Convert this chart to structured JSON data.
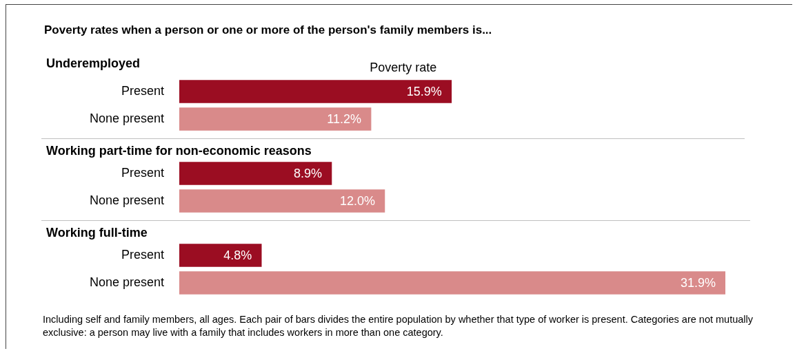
{
  "chart_data": [
    {
      "type": "bar",
      "orientation": "horizontal",
      "title": "Poverty rates when a person or one or more of the person's family members is...",
      "subtitle": "Underemployed",
      "xlabel": "Poverty rate",
      "categories": [
        "Present",
        "None present"
      ],
      "values": [
        15.9,
        11.2
      ],
      "value_labels": [
        "15.9%",
        "11.2%"
      ],
      "colors": [
        "#9b0d22",
        "#d98a8a"
      ],
      "tick_labels": "y"
    },
    {
      "type": "bar",
      "orientation": "horizontal",
      "subtitle": "Working part-time for non-economic reasons",
      "categories": [
        "Present",
        "None present"
      ],
      "values": [
        8.9,
        12.0
      ],
      "value_labels": [
        "8.9%",
        "12.0%"
      ],
      "colors": [
        "#9b0d22",
        "#d98a8a"
      ],
      "tick_labels": "y"
    },
    {
      "type": "bar",
      "orientation": "horizontal",
      "subtitle": "Working full-time",
      "categories": [
        "Present",
        "None present"
      ],
      "values": [
        4.8,
        31.9
      ],
      "value_labels": [
        "4.8%",
        "31.9%"
      ],
      "colors": [
        "#9b0d22",
        "#d98a8a"
      ],
      "tick_labels": "y",
      "annotations": [
        "Including self and family members, all ages.  Each pair of bars divides the entire population by whether that type of worker is present.  Categories are not mutually exclusive: a person may live with a family that includes workers in more than one category."
      ]
    }
  ]
}
